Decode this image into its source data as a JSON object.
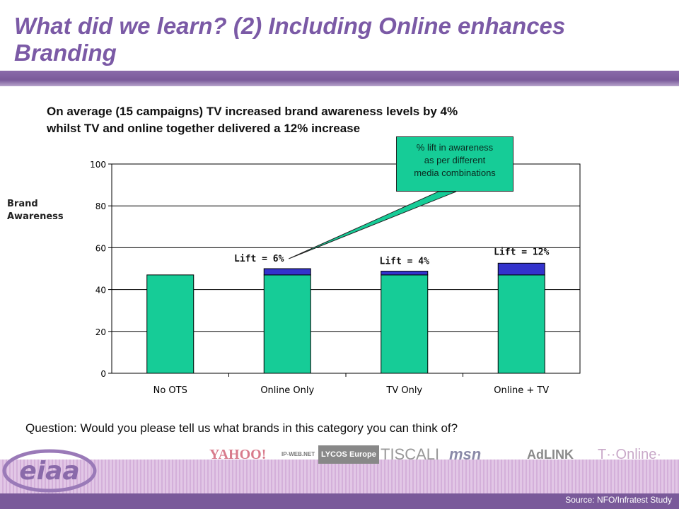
{
  "slide": {
    "title": "What did we learn? (2) Including Online enhances Branding",
    "subtitle_line1": "On average (15 campaigns) TV increased brand awareness levels by 4%",
    "subtitle_line2": "whilst TV and online together delivered a 12% increase",
    "question": "Question: Would you please tell us what brands in this category you can think of?",
    "source": "Source: NFO/Infratest Study",
    "logo_text": "eiaa"
  },
  "callout": {
    "line1": "% lift in awareness",
    "line2": "as per different",
    "line3": "media combinations"
  },
  "logos": [
    "YAHOO!",
    "IP-WEB.NET",
    "LYCOS Europe",
    "TISCALI",
    "msn",
    "AdLINK",
    "T··Online·"
  ],
  "colors": {
    "title": "#7b5aa6",
    "bar_base": "#16cc97",
    "bar_lift": "#3333cc",
    "band": "#7a5a9a",
    "callout": "#16cc97"
  },
  "chart_data": {
    "type": "bar",
    "stacked": true,
    "ylabel": "Brand Awareness",
    "ylim": [
      0,
      100
    ],
    "yticks": [
      0,
      20,
      40,
      60,
      80,
      100
    ],
    "grid": true,
    "categories": [
      "No OTS",
      "Online Only",
      "TV Only",
      "Online + TV"
    ],
    "series": [
      {
        "values": [
          47,
          47,
          47,
          47
        ],
        "color": "#16cc97"
      },
      {
        "values": [
          0,
          3,
          1.8,
          5.6
        ],
        "color": "#3333cc"
      }
    ],
    "annotations": [
      "",
      "Lift = 6%",
      "Lift = 4%",
      "Lift = 12%"
    ]
  }
}
